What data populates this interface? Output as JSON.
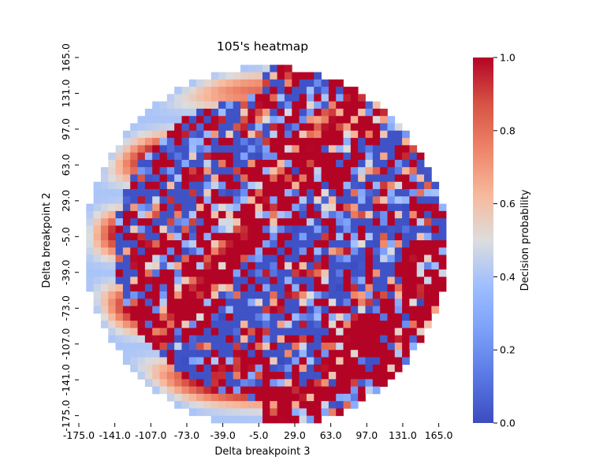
{
  "chart_data": {
    "type": "heatmap",
    "title": "105's heatmap",
    "xlabel": "Delta breakpoint 3",
    "ylabel": "Delta breakpoint 2",
    "x_tick_labels": [
      "-175.0",
      "-141.0",
      "-107.0",
      "-73.0",
      "-39.0",
      "-5.0",
      "29.0",
      "63.0",
      "97.0",
      "131.0",
      "165.0"
    ],
    "y_tick_labels": [
      "165.0",
      "131.0",
      "97.0",
      "63.0",
      "29.0",
      "-5.0",
      "-39.0",
      "-73.0",
      "-107.0",
      "-141.0",
      "-175.0"
    ],
    "x_range": [
      -175,
      165
    ],
    "y_range": [
      -175,
      165
    ],
    "grid_step": 7,
    "grid_size": 50,
    "value_range": [
      0,
      1
    ],
    "colormap": "coolwarm",
    "colorbar": {
      "label": "Decision probability",
      "tick_labels": [
        "0.0",
        "0.2",
        "0.4",
        "0.6",
        "0.8",
        "1.0"
      ],
      "ticks": [
        0,
        0.2,
        0.4,
        0.6,
        0.8,
        1.0
      ],
      "low_color": "#3b4cc0",
      "mid_color": "#dddddd",
      "high_color": "#b40426"
    },
    "mask": "circular region; cells outside the circle are blank",
    "note": "cell values are a mix of high (~1.0) regions, low (~0.0) regions, and smooth gradients near the boundary"
  }
}
